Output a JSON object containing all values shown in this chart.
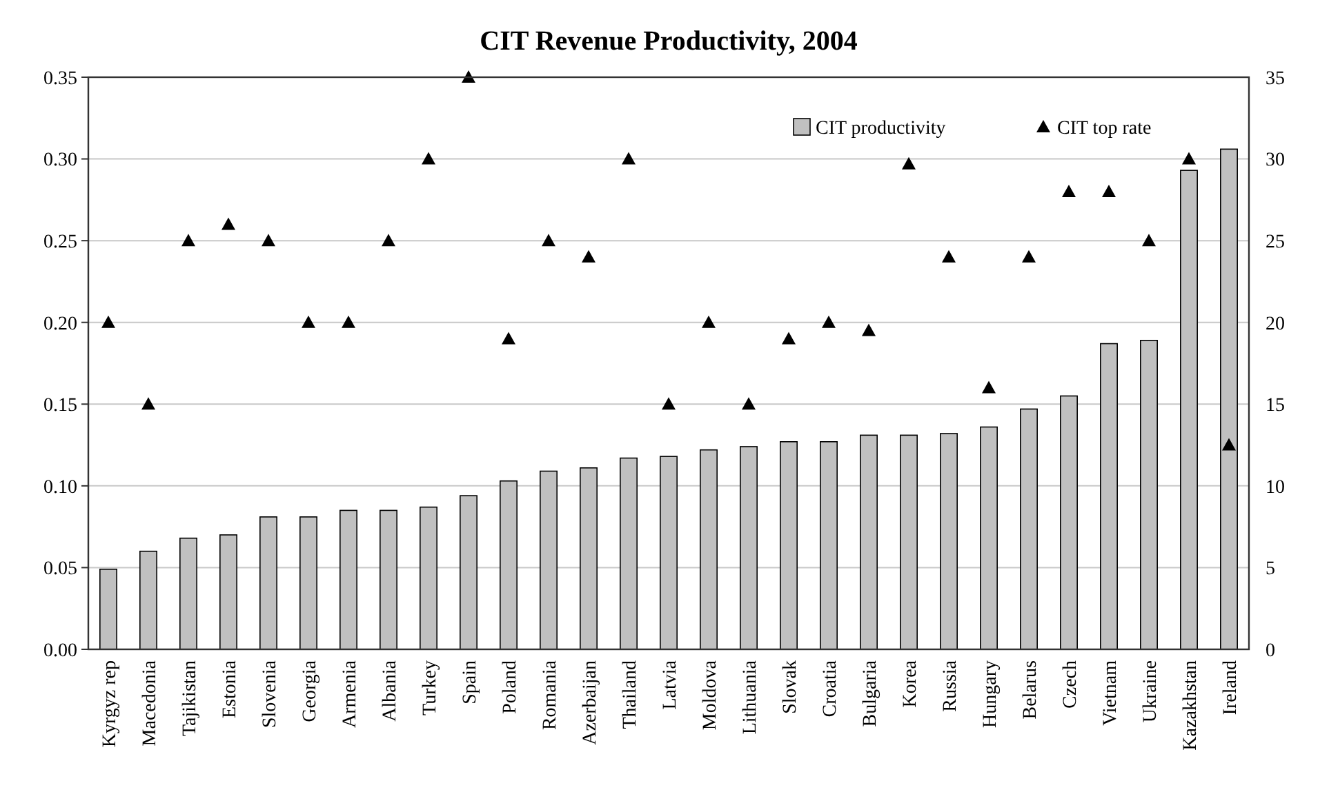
{
  "chart_data": {
    "type": "bar",
    "title": "CIT Revenue Productivity, 2004",
    "categories": [
      "Kyrgyz rep",
      "Macedonia",
      "Tajikistan",
      "Estonia",
      "Slovenia",
      "Georgia",
      "Armenia",
      "Albania",
      "Turkey",
      "Spain",
      "Poland",
      "Romania",
      "Azerbaijan",
      "Thailand",
      "Latvia",
      "Moldova",
      "Lithuania",
      "Slovak",
      "Croatia",
      "Bulgaria",
      "Korea",
      "Russia",
      "Hungary",
      "Belarus",
      "Czech",
      "Vietnam",
      "Ukraine",
      "Kazakhstan",
      "Ireland"
    ],
    "series": [
      {
        "name": "CIT productivity",
        "color": "#c0c0c0",
        "values": [
          0.049,
          0.06,
          0.068,
          0.07,
          0.081,
          0.081,
          0.085,
          0.085,
          0.087,
          0.094,
          0.103,
          0.109,
          0.111,
          0.117,
          0.118,
          0.122,
          0.124,
          0.127,
          0.127,
          0.131,
          0.131,
          0.132,
          0.136,
          0.147,
          0.155,
          0.187,
          0.189,
          0.293,
          0.306
        ]
      },
      {
        "name": "CIT top rate",
        "type": "scatter",
        "axis": "y2",
        "color": "#000000",
        "marker": "triangle",
        "values": [
          20,
          15,
          25,
          26,
          25,
          20,
          20,
          25,
          30,
          35,
          19,
          25,
          24,
          30,
          15,
          20,
          15,
          19,
          20,
          19.5,
          29.7,
          24,
          16,
          24,
          28,
          28,
          25,
          30,
          12.5
        ]
      }
    ],
    "ylim": [
      0,
      0.35
    ],
    "yticks": [
      {
        "value": 0,
        "label": "0.00"
      },
      {
        "value": 0.05,
        "label": "0.05"
      },
      {
        "value": 0.1,
        "label": "0.10"
      },
      {
        "value": 0.15,
        "label": "0.15"
      },
      {
        "value": 0.2,
        "label": "0.20"
      },
      {
        "value": 0.25,
        "label": "0.25"
      },
      {
        "value": 0.3,
        "label": "0.30"
      },
      {
        "value": 0.35,
        "label": "0.35"
      }
    ],
    "y2lim": [
      0,
      35
    ],
    "y2ticks": [
      0,
      5,
      10,
      15,
      20,
      25,
      30,
      35
    ],
    "grid": "y",
    "legend": "top right"
  }
}
